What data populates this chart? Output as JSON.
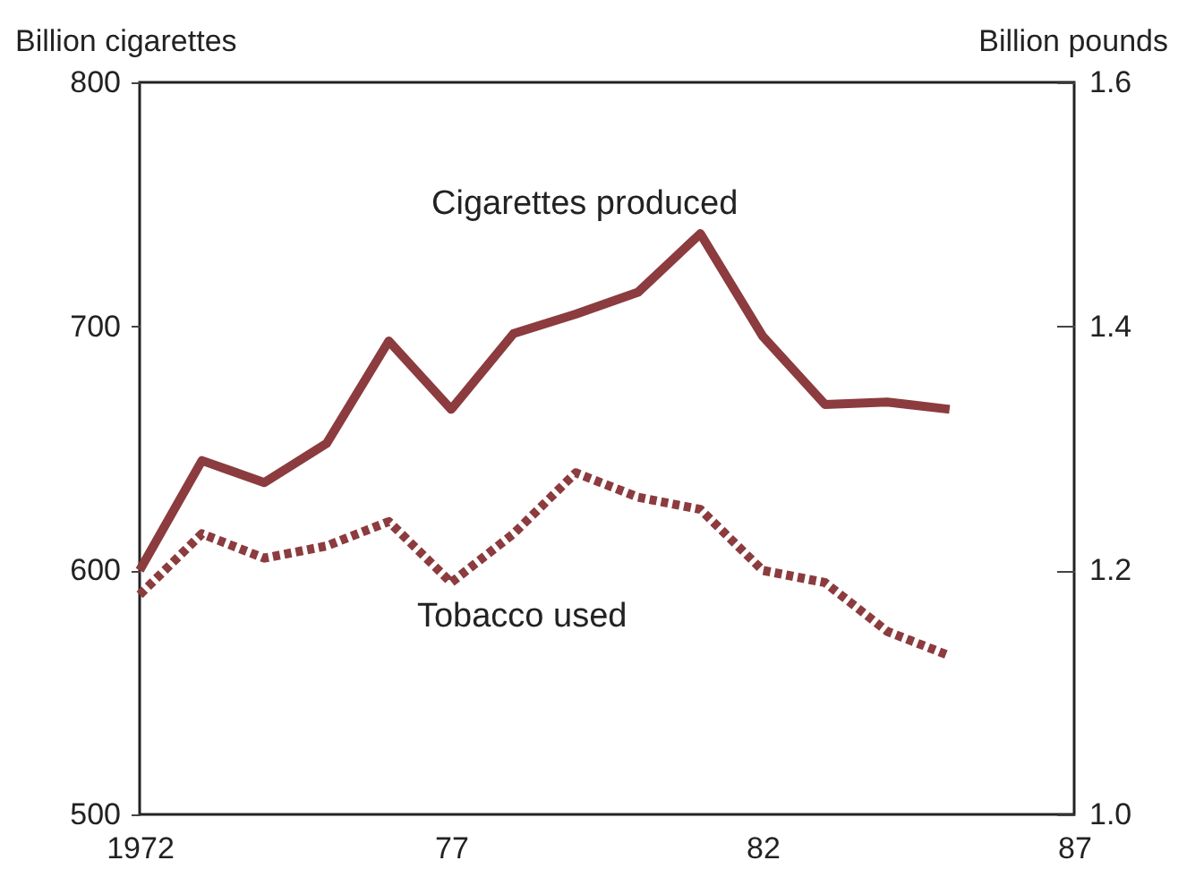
{
  "chart_data": {
    "type": "line",
    "ylabel": "Billion cigarettes",
    "y2label": "Billion pounds",
    "x": [
      1972,
      1973,
      1974,
      1975,
      1976,
      1977,
      1978,
      1979,
      1980,
      1981,
      1982,
      1983,
      1984,
      1985
    ],
    "xlim": [
      1972,
      1987
    ],
    "xticks": [
      1972,
      {
        "value": 1977,
        "label": "77"
      },
      {
        "value": 1982,
        "label": "82"
      },
      {
        "value": 1987,
        "label": "87"
      }
    ],
    "ylim": [
      500,
      800
    ],
    "yticks": [
      500,
      600,
      700,
      800
    ],
    "y2lim": [
      1.0,
      1.6
    ],
    "y2ticks": [
      {
        "value": 1.0,
        "label": "1.0"
      },
      {
        "value": 1.2,
        "label": "1.2"
      },
      {
        "value": 1.4,
        "label": "1.4"
      },
      {
        "value": 1.6,
        "label": "1.6"
      }
    ],
    "series": [
      {
        "name": "Cigarettes produced",
        "color": "#8c3b3e",
        "line_style": "solid",
        "values": [
          600,
          645,
          636,
          652,
          694,
          666,
          697,
          705,
          714,
          738,
          696,
          668,
          669,
          666
        ]
      },
      {
        "name": "Tobacco used",
        "color": "#8c3b3e",
        "line_style": "dotted",
        "axis": "y2",
        "values": [
          1.18,
          1.23,
          1.21,
          1.22,
          1.24,
          1.19,
          1.23,
          1.28,
          1.26,
          1.25,
          1.2,
          1.19,
          1.15,
          1.13
        ]
      }
    ],
    "grid": false,
    "marker": "none"
  }
}
